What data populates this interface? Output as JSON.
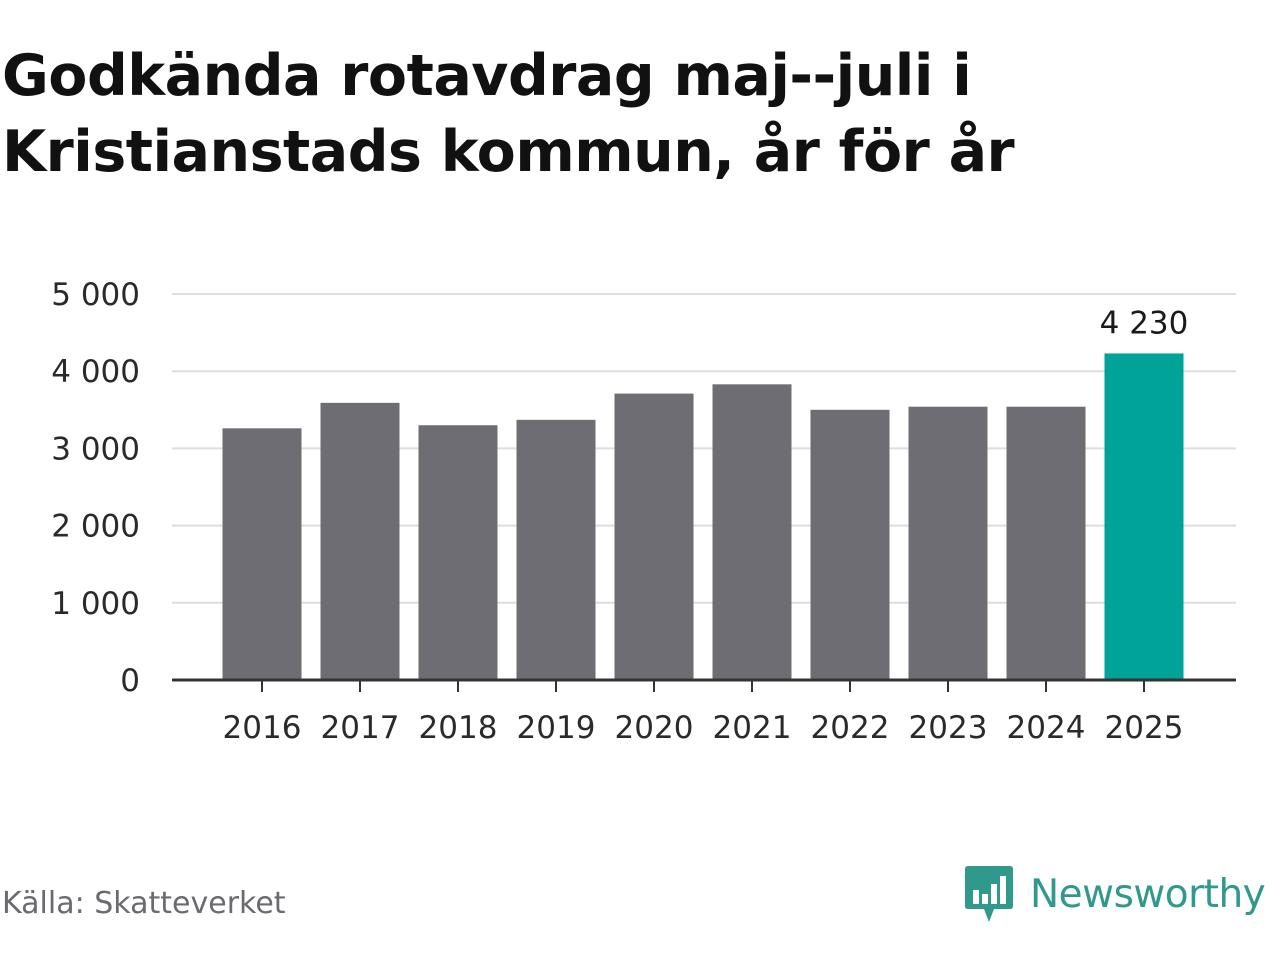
{
  "header": {
    "title": "Godkända rotavdrag maj--juli i Kristianstads kommun, år för år"
  },
  "footer": {
    "source": "Källa: Skatteverket",
    "brand": "Newsworthy"
  },
  "colors": {
    "bar_default": "#6e6d73",
    "bar_highlight": "#00a398",
    "grid": "#dddddd",
    "axis": "#333333",
    "brand": "#2f9a8c"
  },
  "icons": {
    "brand_logo": "newsworthy-logo-icon"
  },
  "chart_data": {
    "type": "bar",
    "categories": [
      "2016",
      "2017",
      "2018",
      "2019",
      "2020",
      "2021",
      "2022",
      "2023",
      "2024",
      "2025"
    ],
    "values": [
      3260,
      3590,
      3300,
      3370,
      3710,
      3830,
      3500,
      3540,
      3540,
      4230
    ],
    "highlight_index": 9,
    "data_labels": [
      {
        "index": 9,
        "text": "4 230"
      }
    ],
    "ylim": [
      0,
      5000
    ],
    "yticks": [
      0,
      1000,
      2000,
      3000,
      4000,
      5000
    ],
    "ytick_labels": [
      "0",
      "1 000",
      "2 000",
      "3 000",
      "4 000",
      "5 000"
    ],
    "grid": true,
    "xlabel": "",
    "ylabel": ""
  }
}
